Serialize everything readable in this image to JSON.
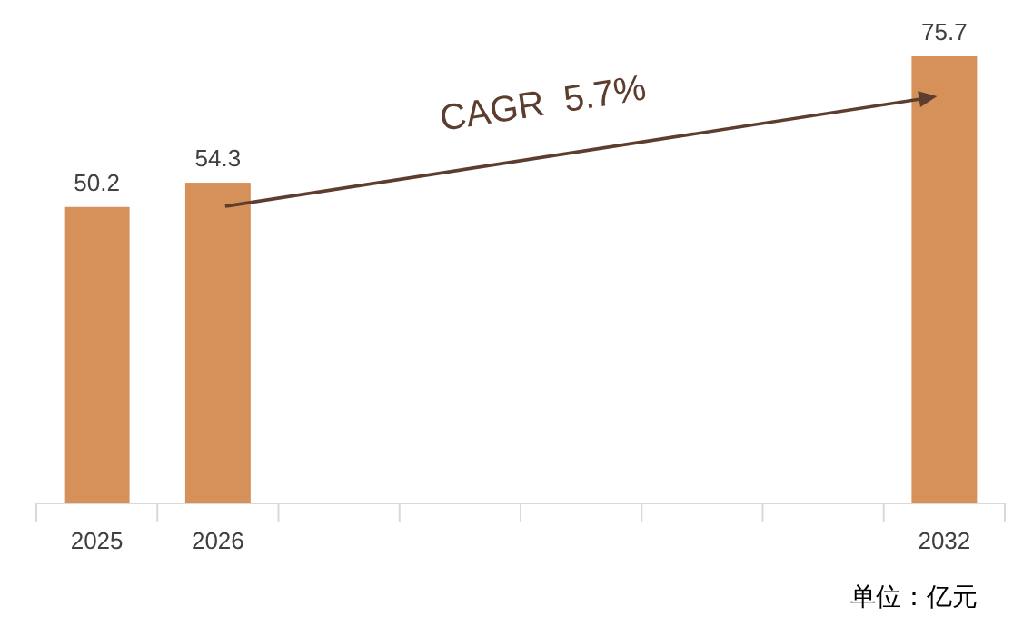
{
  "chart_data": {
    "type": "bar",
    "categories": [
      "2025",
      "2026",
      null,
      null,
      null,
      null,
      null,
      "2032"
    ],
    "values": [
      50.2,
      54.3,
      null,
      null,
      null,
      null,
      null,
      75.7
    ],
    "color": "#d6905a",
    "data_labels": true,
    "annotations": [
      "CAGR  5.7%",
      "单位：亿元"
    ]
  }
}
